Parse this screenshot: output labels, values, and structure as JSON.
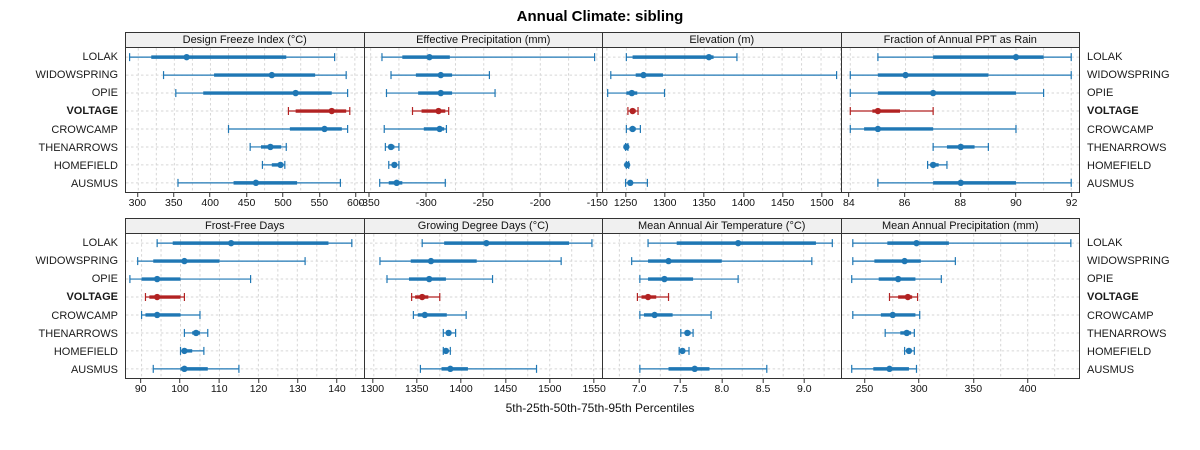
{
  "title": "Annual Climate: sibling",
  "footer": "5th-25th-50th-75th-95th Percentiles",
  "colors": {
    "normal": "#1f77b4",
    "highlight": "#b22222",
    "grid": "#d6d6d6",
    "border": "#333333",
    "header_bg": "#f0f0f0"
  },
  "chart_data": {
    "type": "box",
    "subtype": "percentile-interval-dotplot",
    "percentiles": [
      5,
      25,
      50,
      75,
      95
    ],
    "legend": "none",
    "grid": "dashed",
    "sites": [
      "LOLAK",
      "WIDOWSPRING",
      "OPIE",
      "VOLTAGE",
      "CROWCAMP",
      "THENARROWS",
      "HOMEFIELD",
      "AUSMUS"
    ],
    "highlight_site": "VOLTAGE",
    "panels": [
      {
        "title": "Design Freeze Index (°C)",
        "xlim": [
          283,
          612
        ],
        "grid_step": 25,
        "tick_values": [
          300,
          350,
          400,
          450,
          500,
          550,
          600
        ],
        "tick_labels": [
          "300",
          "350",
          "400",
          "450",
          "500",
          "550",
          "600"
        ],
        "series": [
          {
            "site": "LOLAK",
            "values": [
              288,
              318,
              367,
              505,
              572
            ]
          },
          {
            "site": "WIDOWSPRING",
            "values": [
              335,
              405,
              485,
              545,
              588
            ]
          },
          {
            "site": "OPIE",
            "values": [
              352,
              390,
              518,
              568,
              590
            ]
          },
          {
            "site": "VOLTAGE",
            "values": [
              508,
              518,
              568,
              588,
              593
            ]
          },
          {
            "site": "CROWCAMP",
            "values": [
              425,
              510,
              558,
              582,
              590
            ]
          },
          {
            "site": "THENARROWS",
            "values": [
              455,
              470,
              483,
              498,
              505
            ]
          },
          {
            "site": "HOMEFIELD",
            "values": [
              472,
              485,
              497,
              501,
              503
            ]
          },
          {
            "site": "AUSMUS",
            "values": [
              355,
              432,
              463,
              520,
              580
            ]
          }
        ]
      },
      {
        "title": "Effective Precipitation (mm)",
        "xlim": [
          -355,
          -145
        ],
        "grid_step": 25,
        "tick_values": [
          -350,
          -300,
          -250,
          -200,
          -150
        ],
        "tick_labels": [
          "-350",
          "-300",
          "-250",
          "-200",
          "-150"
        ],
        "series": [
          {
            "site": "LOLAK",
            "values": [
              -340,
              -322,
              -298,
              -280,
              -152
            ]
          },
          {
            "site": "WIDOWSPRING",
            "values": [
              -332,
              -310,
              -288,
              -278,
              -245
            ]
          },
          {
            "site": "OPIE",
            "values": [
              -336,
              -308,
              -288,
              -278,
              -240
            ]
          },
          {
            "site": "VOLTAGE",
            "values": [
              -313,
              -305,
              -290,
              -284,
              -281
            ]
          },
          {
            "site": "CROWCAMP",
            "values": [
              -338,
              -303,
              -289,
              -285,
              -283
            ]
          },
          {
            "site": "THENARROWS",
            "values": [
              -337,
              -334,
              -332,
              -329,
              -325
            ]
          },
          {
            "site": "HOMEFIELD",
            "values": [
              -334,
              -331,
              -329,
              -327,
              -325
            ]
          },
          {
            "site": "AUSMUS",
            "values": [
              -342,
              -334,
              -327,
              -322,
              -284
            ]
          }
        ]
      },
      {
        "title": "Elevation (m)",
        "xlim": [
          1220,
          1525
        ],
        "grid_step": 25,
        "tick_values": [
          1250,
          1300,
          1350,
          1400,
          1450,
          1500
        ],
        "tick_labels": [
          "1250",
          "1300",
          "1350",
          "1400",
          "1450",
          "1500"
        ],
        "series": [
          {
            "site": "LOLAK",
            "values": [
              1250,
              1258,
              1356,
              1362,
              1392
            ]
          },
          {
            "site": "WIDOWSPRING",
            "values": [
              1230,
              1262,
              1272,
              1297,
              1520
            ]
          },
          {
            "site": "OPIE",
            "values": [
              1226,
              1250,
              1257,
              1264,
              1299
            ]
          },
          {
            "site": "VOLTAGE",
            "values": [
              1252,
              1255,
              1258,
              1262,
              1265
            ]
          },
          {
            "site": "CROWCAMP",
            "values": [
              1250,
              1254,
              1258,
              1262,
              1268
            ]
          },
          {
            "site": "THENARROWS",
            "values": [
              1249,
              1250,
              1250,
              1251,
              1252
            ]
          },
          {
            "site": "HOMEFIELD",
            "values": [
              1250,
              1251,
              1251,
              1252,
              1253
            ]
          },
          {
            "site": "AUSMUS",
            "values": [
              1249,
              1252,
              1255,
              1258,
              1277
            ]
          }
        ]
      },
      {
        "title": "Fraction of Annual PPT as Rain",
        "xlim": [
          83.7,
          92.3
        ],
        "grid_step": 1,
        "tick_values": [
          84,
          86,
          88,
          90,
          92
        ],
        "tick_labels": [
          "84",
          "86",
          "88",
          "90",
          "92"
        ],
        "series": [
          {
            "site": "LOLAK",
            "values": [
              85,
              87,
              90,
              91,
              92
            ]
          },
          {
            "site": "WIDOWSPRING",
            "values": [
              84,
              85,
              86,
              89,
              92
            ]
          },
          {
            "site": "OPIE",
            "values": [
              84,
              85,
              87,
              90,
              91
            ]
          },
          {
            "site": "VOLTAGE",
            "values": [
              84,
              84.8,
              85,
              85.8,
              87
            ]
          },
          {
            "site": "CROWCAMP",
            "values": [
              84,
              84.5,
              85,
              87,
              90
            ]
          },
          {
            "site": "THENARROWS",
            "values": [
              87,
              87.5,
              88,
              88.5,
              89
            ]
          },
          {
            "site": "HOMEFIELD",
            "values": [
              86.8,
              86.9,
              87,
              87.2,
              87.5
            ]
          },
          {
            "site": "AUSMUS",
            "values": [
              85,
              87,
              88,
              90,
              92
            ]
          }
        ]
      },
      {
        "title": "Frost-Free Days",
        "xlim": [
          86,
          147
        ],
        "grid_step": 5,
        "tick_values": [
          90,
          100,
          110,
          120,
          130,
          140
        ],
        "tick_labels": [
          "90",
          "100",
          "110",
          "120",
          "130",
          "140"
        ],
        "series": [
          {
            "site": "LOLAK",
            "values": [
              94,
              98,
              113,
              138,
              144
            ]
          },
          {
            "site": "WIDOWSPRING",
            "values": [
              89,
              93,
              101,
              110,
              132
            ]
          },
          {
            "site": "OPIE",
            "values": [
              87,
              90,
              94,
              100,
              118
            ]
          },
          {
            "site": "VOLTAGE",
            "values": [
              91,
              92,
              94,
              100,
              101
            ]
          },
          {
            "site": "CROWCAMP",
            "values": [
              90,
              91,
              94,
              100,
              105
            ]
          },
          {
            "site": "THENARROWS",
            "values": [
              101,
              103,
              104,
              105,
              107
            ]
          },
          {
            "site": "HOMEFIELD",
            "values": [
              100,
              101,
              101,
              103,
              106
            ]
          },
          {
            "site": "AUSMUS",
            "values": [
              93,
              100,
              101,
              107,
              115
            ]
          }
        ]
      },
      {
        "title": "Growing Degree Days (°C)",
        "xlim": [
          1290,
          1560
        ],
        "grid_step": 25,
        "tick_values": [
          1300,
          1350,
          1400,
          1450,
          1500,
          1550
        ],
        "tick_labels": [
          "1300",
          "1350",
          "1400",
          "1450",
          "1500",
          "1550"
        ],
        "series": [
          {
            "site": "LOLAK",
            "values": [
              1355,
              1380,
              1428,
              1522,
              1548
            ]
          },
          {
            "site": "WIDOWSPRING",
            "values": [
              1307,
              1342,
              1365,
              1417,
              1513
            ]
          },
          {
            "site": "OPIE",
            "values": [
              1315,
              1340,
              1363,
              1382,
              1435
            ]
          },
          {
            "site": "VOLTAGE",
            "values": [
              1343,
              1347,
              1355,
              1362,
              1375
            ]
          },
          {
            "site": "CROWCAMP",
            "values": [
              1345,
              1350,
              1358,
              1383,
              1405
            ]
          },
          {
            "site": "THENARROWS",
            "values": [
              1379,
              1383,
              1385,
              1388,
              1393
            ]
          },
          {
            "site": "HOMEFIELD",
            "values": [
              1379,
              1381,
              1382,
              1384,
              1387
            ]
          },
          {
            "site": "AUSMUS",
            "values": [
              1353,
              1377,
              1387,
              1407,
              1485
            ]
          }
        ]
      },
      {
        "title": "Mean Annual Air Temperature (°C)",
        "xlim": [
          6.55,
          9.45
        ],
        "grid_step": 0.25,
        "tick_values": [
          7.0,
          7.5,
          8.0,
          8.5,
          9.0
        ],
        "tick_labels": [
          "7.0",
          "7.5",
          "8.0",
          "8.5",
          "9.0"
        ],
        "series": [
          {
            "site": "LOLAK",
            "values": [
              7.1,
              7.45,
              8.2,
              9.15,
              9.35
            ]
          },
          {
            "site": "WIDOWSPRING",
            "values": [
              6.9,
              7.1,
              7.35,
              8.0,
              9.1
            ]
          },
          {
            "site": "OPIE",
            "values": [
              7.0,
              7.1,
              7.3,
              7.65,
              8.2
            ]
          },
          {
            "site": "VOLTAGE",
            "values": [
              6.97,
              7.02,
              7.1,
              7.2,
              7.35
            ]
          },
          {
            "site": "CROWCAMP",
            "values": [
              7.0,
              7.05,
              7.18,
              7.4,
              7.87
            ]
          },
          {
            "site": "THENARROWS",
            "values": [
              7.5,
              7.55,
              7.58,
              7.62,
              7.65
            ]
          },
          {
            "site": "HOMEFIELD",
            "values": [
              7.48,
              7.5,
              7.52,
              7.55,
              7.6
            ]
          },
          {
            "site": "AUSMUS",
            "values": [
              7.0,
              7.35,
              7.67,
              7.85,
              8.55
            ]
          }
        ]
      },
      {
        "title": "Mean Annual Precipitation (mm)",
        "xlim": [
          228,
          448
        ],
        "grid_step": 25,
        "tick_values": [
          250,
          300,
          350,
          400
        ],
        "tick_labels": [
          "250",
          "300",
          "350",
          "400"
        ],
        "series": [
          {
            "site": "LOLAK",
            "values": [
              238,
              270,
              297,
              327,
              440
            ]
          },
          {
            "site": "WIDOWSPRING",
            "values": [
              238,
              258,
              286,
              301,
              333
            ]
          },
          {
            "site": "OPIE",
            "values": [
              237,
              262,
              280,
              296,
              320
            ]
          },
          {
            "site": "VOLTAGE",
            "values": [
              272,
              280,
              289,
              293,
              298
            ]
          },
          {
            "site": "CROWCAMP",
            "values": [
              238,
              264,
              275,
              296,
              300
            ]
          },
          {
            "site": "THENARROWS",
            "values": [
              268,
              282,
              288,
              292,
              295
            ]
          },
          {
            "site": "HOMEFIELD",
            "values": [
              286,
              288,
              290,
              292,
              295
            ]
          },
          {
            "site": "AUSMUS",
            "values": [
              237,
              257,
              272,
              290,
              297
            ]
          }
        ]
      }
    ]
  }
}
